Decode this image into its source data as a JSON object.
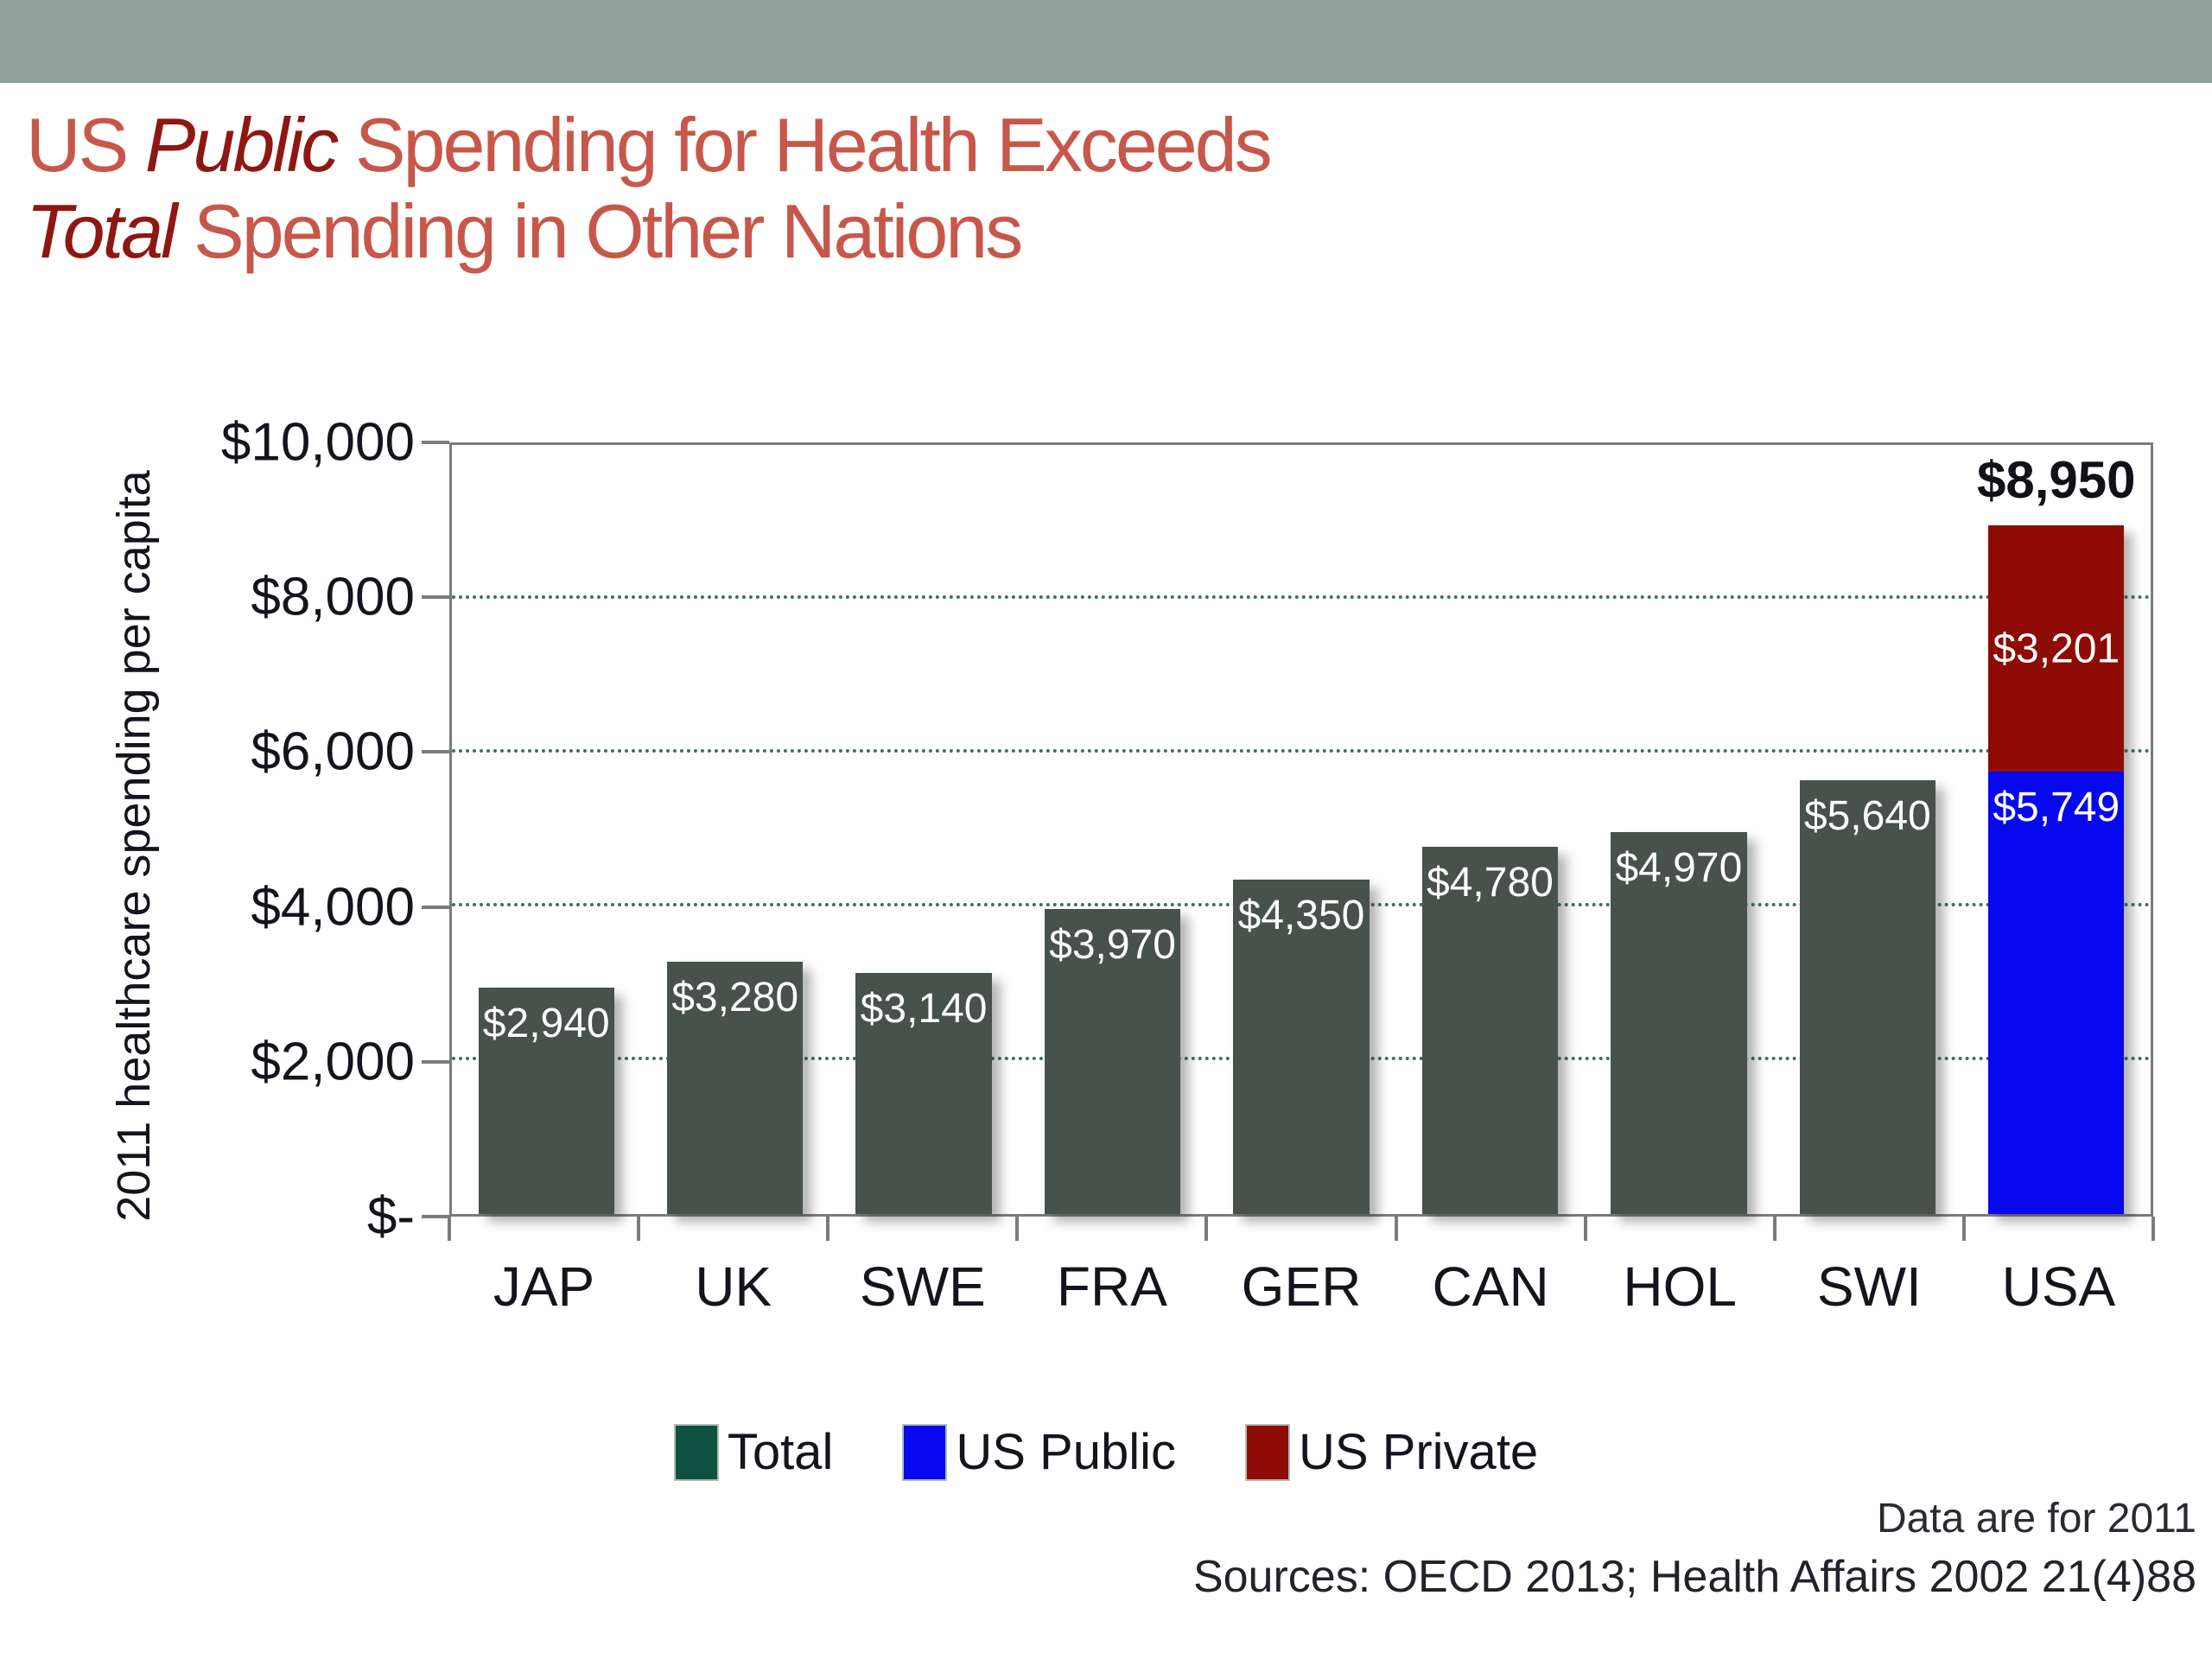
{
  "title": {
    "part1": "US ",
    "part2": "Public",
    "part3": " Spending for Health Exceeds",
    "part4": "Total",
    "part5": " Spending in Other Nations"
  },
  "colors": {
    "top_band": "#92a19b",
    "title_accent": "#c7574a",
    "title_dark_red": "#8e1712",
    "bar_gray_green": "#46524b",
    "us_public_blue": "#0808f0",
    "us_private_red": "#8e0b06",
    "legend_total_swatch": "#0f5140",
    "gridline_green": "#41705c",
    "axis_gray": "#7b7b7b"
  },
  "chart_data": {
    "type": "bar",
    "stacked": true,
    "title": "US Public Spending for Health Exceeds Total Spending in Other Nations",
    "ylabel": "2011 healthcare spending per capita",
    "xlabel": "",
    "ylim": [
      0,
      10000
    ],
    "grid": "horizontal dotted",
    "legend_position": "bottom",
    "categories": [
      "JAP",
      "UK",
      "SWE",
      "FRA",
      "GER",
      "CAN",
      "HOL",
      "SWI",
      "USA"
    ],
    "series": [
      {
        "name": "Total",
        "color": "#46524b",
        "legend_color": "#0f5140",
        "values": [
          2940,
          3280,
          3140,
          3970,
          4350,
          4780,
          4970,
          5640,
          0
        ]
      },
      {
        "name": "US Public",
        "color": "#0808f0",
        "legend_color": "#0808f0",
        "values": [
          0,
          0,
          0,
          0,
          0,
          0,
          0,
          0,
          5749
        ]
      },
      {
        "name": "US Private",
        "color": "#8e0b06",
        "legend_color": "#8e0b06",
        "values": [
          0,
          0,
          0,
          0,
          0,
          0,
          0,
          0,
          3201
        ]
      }
    ],
    "value_labels": [
      "$2,940",
      "$3,280",
      "$3,140",
      "$3,970",
      "$4,350",
      "$4,780",
      "$4,970",
      "$5,640"
    ],
    "usa": {
      "public_label": "$5,749",
      "private_label": "$3,201",
      "total_label": "$8,950",
      "total_value": 8950
    },
    "yticks": [
      {
        "label": "$10,000",
        "value": 10000
      },
      {
        "label": "$8,000",
        "value": 8000
      },
      {
        "label": "$6,000",
        "value": 6000
      },
      {
        "label": "$4,000",
        "value": 4000
      },
      {
        "label": "$2,000",
        "value": 2000
      },
      {
        "label": "$-",
        "value": 0
      }
    ],
    "gridline_values": [
      2000,
      4000,
      6000,
      8000
    ]
  },
  "footer": {
    "line1": "Data are for 2011",
    "line2": "Sources: OECD 2013; Health Affairs 2002 21(4)88"
  }
}
